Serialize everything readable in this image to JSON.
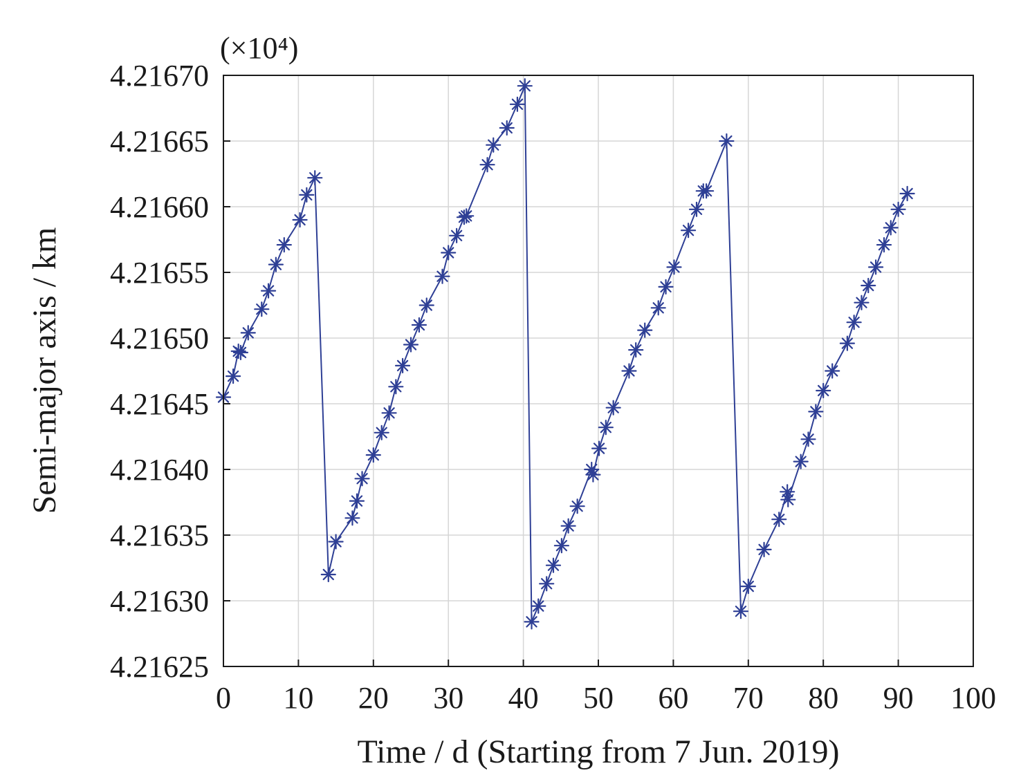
{
  "chart_data": {
    "type": "line",
    "xlabel": "Time / d (Starting from 7 Jun. 2019)",
    "ylabel": "Semi-major axis / km",
    "y_multiplier": "(×10⁴)",
    "xlim": [
      0,
      100
    ],
    "ylim": [
      4.21625,
      4.2167
    ],
    "x_ticks": [
      0,
      10,
      20,
      30,
      40,
      50,
      60,
      70,
      80,
      90,
      100
    ],
    "x_tick_labels": [
      "0",
      "10",
      "20",
      "30",
      "40",
      "50",
      "60",
      "70",
      "80",
      "90",
      "100"
    ],
    "y_ticks": [
      4.21625,
      4.2163,
      4.21635,
      4.2164,
      4.21645,
      4.2165,
      4.21655,
      4.2166,
      4.21665,
      4.2167
    ],
    "y_tick_labels": [
      "4.21625",
      "4.21630",
      "4.21635",
      "4.21640",
      "4.21645",
      "4.21650",
      "4.21655",
      "4.21660",
      "4.21665",
      "4.21670"
    ],
    "grid": true,
    "marker": "asterisk",
    "series_color": "#2e3f95",
    "series": [
      {
        "x": [
          0.0,
          1.3,
          2.0,
          2.3,
          3.3,
          5.1,
          6.0,
          7.0,
          8.1,
          10.2,
          11.1,
          12.2,
          14.0,
          15.0,
          17.2,
          17.8,
          18.5,
          20.0,
          21.1,
          22.1,
          23.0,
          23.9,
          25.0,
          26.1,
          27.1,
          29.2,
          30.0,
          31.1,
          32.1,
          32.4,
          35.2,
          36.0,
          37.8,
          39.2,
          40.2,
          41.1,
          42.0,
          43.1,
          44.0,
          45.1,
          46.0,
          47.2,
          49.1,
          49.3,
          50.1,
          51.0,
          52.0,
          54.1,
          55.0,
          56.2,
          58.0,
          59.0,
          60.1,
          62.0,
          63.1,
          64.0,
          64.4,
          67.1,
          69.0,
          70.0,
          72.1,
          74.1,
          75.2,
          75.3,
          77.0,
          78.0,
          79.0,
          80.0,
          81.2,
          83.2,
          84.1,
          85.1,
          86.0,
          87.0,
          88.1,
          89.0,
          90.0,
          91.2
        ],
        "y": [
          4.216455,
          4.216471,
          4.21649,
          4.216489,
          4.216504,
          4.216522,
          4.216536,
          4.216556,
          4.216571,
          4.21659,
          4.216609,
          4.216622,
          4.21632,
          4.216345,
          4.216363,
          4.216376,
          4.216393,
          4.216411,
          4.216428,
          4.216443,
          4.216463,
          4.216479,
          4.216495,
          4.21651,
          4.216525,
          4.216547,
          4.216565,
          4.216578,
          4.216592,
          4.216593,
          4.216632,
          4.216647,
          4.21666,
          4.216678,
          4.216692,
          4.216284,
          4.216296,
          4.216313,
          4.216327,
          4.216342,
          4.216357,
          4.216372,
          4.2164,
          4.216396,
          4.216416,
          4.216432,
          4.216447,
          4.216475,
          4.216491,
          4.216506,
          4.216523,
          4.216539,
          4.216554,
          4.216582,
          4.216598,
          4.216612,
          4.216612,
          4.21665,
          4.216292,
          4.216311,
          4.216339,
          4.216362,
          4.216383,
          4.216377,
          4.216406,
          4.216423,
          4.216444,
          4.21646,
          4.216475,
          4.216496,
          4.216512,
          4.216527,
          4.21654,
          4.216554,
          4.216571,
          4.216584,
          4.216598,
          4.21661
        ]
      }
    ]
  }
}
